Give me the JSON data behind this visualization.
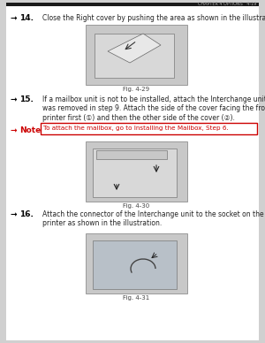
{
  "page_bg": "#ffffff",
  "outer_bg": "#d0d0d0",
  "header_bg": "#1a1a1a",
  "header_text": "CHAPTER 4 OPTIONS",
  "header_page": "4-19",
  "header_text_color": "#aaaaaa",
  "step14_bullet": "→",
  "step14_num": "14.",
  "step14_text": "Close the Right cover by pushing the area as shown in the illustration.",
  "fig29_label": "Fig. 4-29",
  "step15_bullet": "→",
  "step15_num": "15.",
  "step15_text": "If a mailbox unit is not to be installed, attach the Interchange unit cover that\nwas removed in step 9. Attach the side of the cover facing the front of the\nprinter first (①) and then the other side of the cover (②).",
  "note_bullet": "→",
  "note_label": "Note",
  "note_text": "To attach the mailbox, go to Installing the Mailbox, Step 6.",
  "note_border_color": "#cc0000",
  "note_text_color": "#cc0000",
  "note_label_color": "#cc0000",
  "fig30_label": "Fig. 4-30",
  "step16_bullet": "→",
  "step16_num": "16.",
  "step16_text": "Attach the connector of the Interchange unit to the socket on the back of the\nprinter as shown in the illustration.",
  "fig31_label": "Fig. 4-31",
  "bullet_color": "#000000",
  "num_color": "#000000",
  "text_color": "#222222",
  "img_border_color": "#999999",
  "img_fill": "#c8c8c8",
  "fig_label_color": "#444444"
}
